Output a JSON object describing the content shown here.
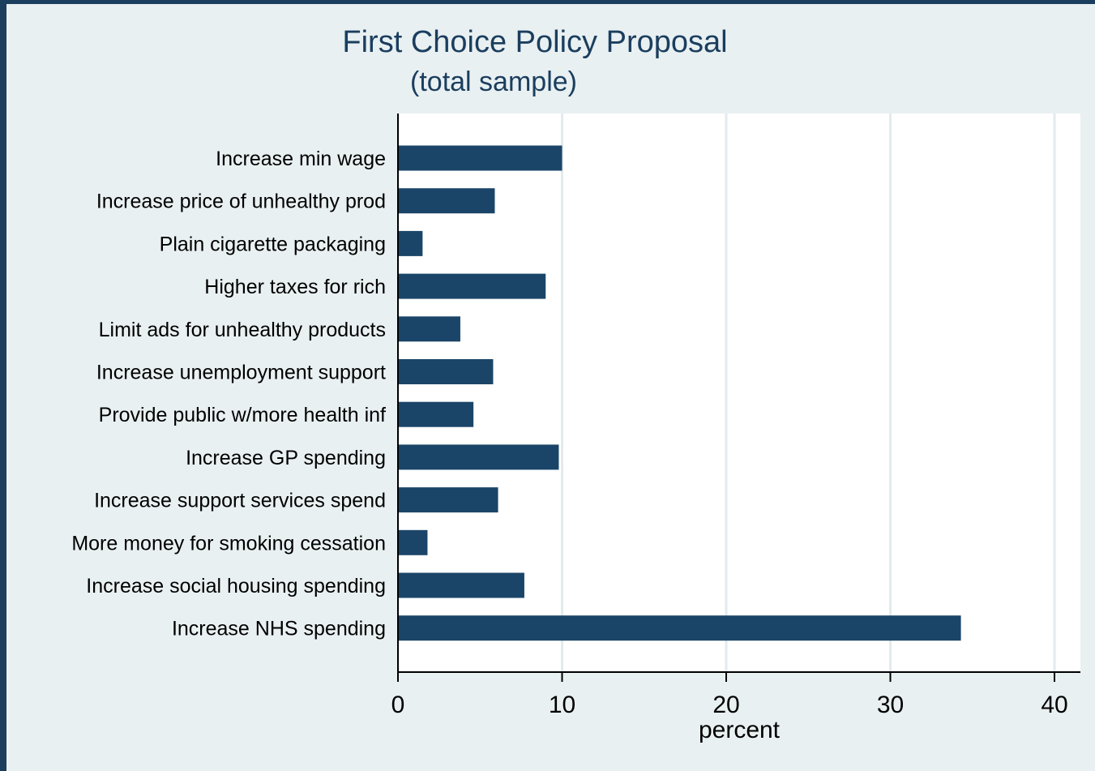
{
  "colors": {
    "outer_background": "#1b3e5e",
    "plot_region_background": "#e9f0f2",
    "plot_area": "#ffffff",
    "bar": "#1b4568",
    "gridline": "#e2ebee",
    "title": "#1b3e5e",
    "axis": "#000000"
  },
  "chart_data": {
    "type": "bar",
    "orientation": "horizontal",
    "title": "First Choice Policy Proposal",
    "subtitle": "(total sample)",
    "xlabel": "percent",
    "ylabel": "",
    "xlim": [
      0,
      41.5
    ],
    "xticks": [
      0,
      10,
      20,
      30,
      40
    ],
    "xtick_labels": [
      "0",
      "10",
      "20",
      "30",
      "40"
    ],
    "grid": true,
    "legend": false,
    "categories": [
      "Increase min wage",
      "Increase price of unhealthy prod",
      "Plain cigarette packaging",
      "Higher taxes for rich",
      "Limit ads for unhealthy products",
      "Increase unemployment support",
      "Provide public w/more health inf",
      "Increase GP spending",
      "Increase support services spend",
      "More money for smoking cessation",
      "Increase social housing spending",
      "Increase NHS spending"
    ],
    "values": [
      10.0,
      5.9,
      1.5,
      9.0,
      3.8,
      5.8,
      4.6,
      9.8,
      6.1,
      1.8,
      7.7,
      34.3
    ]
  }
}
